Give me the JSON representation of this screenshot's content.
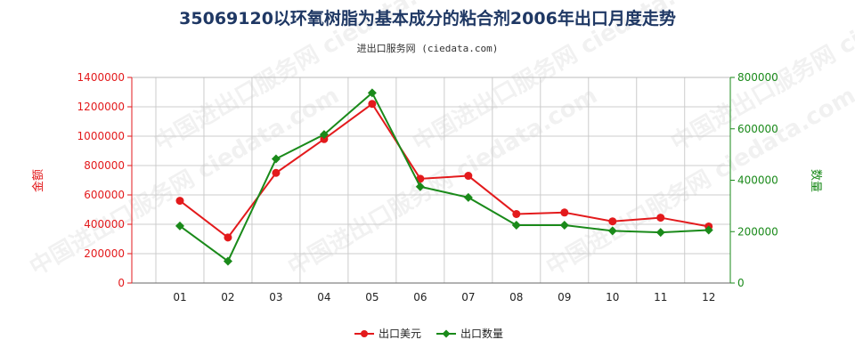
{
  "chart_data": {
    "type": "line",
    "title": "35069120以环氧树脂为基本成分的粘合剂2006年出口月度走势",
    "subtitle": "进出口服务网 (ciedata.com)",
    "watermark": "中国进出口服务网 ciedata.com",
    "categories": [
      "01",
      "02",
      "03",
      "04",
      "05",
      "06",
      "07",
      "08",
      "09",
      "10",
      "11",
      "12"
    ],
    "ylabel_left": "金额",
    "ylabel_right": "数量",
    "ylim_left": [
      0,
      1400000
    ],
    "ylim_right": [
      0,
      800000
    ],
    "yticks_left": [
      "0",
      "200000",
      "400000",
      "600000",
      "800000",
      "1000000",
      "1200000",
      "1400000"
    ],
    "yticks_right": [
      "0",
      "200000",
      "400000",
      "600000",
      "800000"
    ],
    "grid": true,
    "legend_position": "bottom",
    "series": [
      {
        "name": "出口美元",
        "axis": "left",
        "color": "#e31a1c",
        "values": [
          560000,
          310000,
          750000,
          980000,
          1220000,
          710000,
          730000,
          470000,
          480000,
          420000,
          445000,
          385000
        ]
      },
      {
        "name": "出口数量",
        "axis": "right",
        "color": "#1a8a1a",
        "values": [
          222000,
          85000,
          483000,
          578000,
          740000,
          375000,
          333000,
          225000,
          225000,
          203000,
          197000,
          206000
        ]
      }
    ]
  }
}
